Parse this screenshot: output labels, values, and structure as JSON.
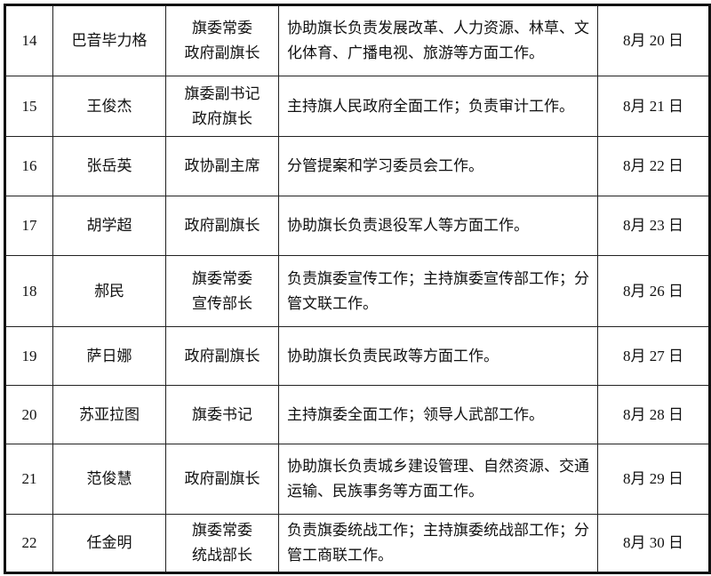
{
  "rows": [
    {
      "no": "14",
      "name": "巴音毕力格",
      "title": [
        "旗委常委",
        "政府副旗长"
      ],
      "duty": "协助旗长负责发展改革、人力资源、林草、文化体育、广播电视、旅游等方面工作。",
      "date": "8月 20 日"
    },
    {
      "no": "15",
      "name": "王俊杰",
      "title": [
        "旗委副书记",
        "政府旗长"
      ],
      "duty": "主持旗人民政府全面工作；负责审计工作。",
      "date": "8月 21 日"
    },
    {
      "no": "16",
      "name": "张岳英",
      "title": [
        "政协副主席"
      ],
      "duty": "分管提案和学习委员会工作。",
      "date": "8月 22 日"
    },
    {
      "no": "17",
      "name": "胡学超",
      "title": [
        "政府副旗长"
      ],
      "duty": "协助旗长负责退役军人等方面工作。",
      "date": "8月 23 日"
    },
    {
      "no": "18",
      "name": "郝民",
      "title": [
        "旗委常委",
        "宣传部长"
      ],
      "duty": "负责旗委宣传工作；主持旗委宣传部工作；分管文联工作。",
      "date": "8月 26 日"
    },
    {
      "no": "19",
      "name": "萨日娜",
      "title": [
        "政府副旗长"
      ],
      "duty": "协助旗长负责民政等方面工作。",
      "date": "8月 27 日"
    },
    {
      "no": "20",
      "name": "苏亚拉图",
      "title": [
        "旗委书记"
      ],
      "duty": "主持旗委全面工作；领导人武部工作。",
      "date": "8月 28 日"
    },
    {
      "no": "21",
      "name": "范俊慧",
      "title": [
        "政府副旗长"
      ],
      "duty": "协助旗长负责城乡建设管理、自然资源、交通运输、民族事务等方面工作。",
      "date": "8月 29 日"
    },
    {
      "no": "22",
      "name": "任金明",
      "title": [
        "旗委常委",
        "统战部长"
      ],
      "duty": "负责旗委统战工作；主持旗委统战部工作；分管工商联工作。",
      "date": "8月 30 日"
    }
  ]
}
